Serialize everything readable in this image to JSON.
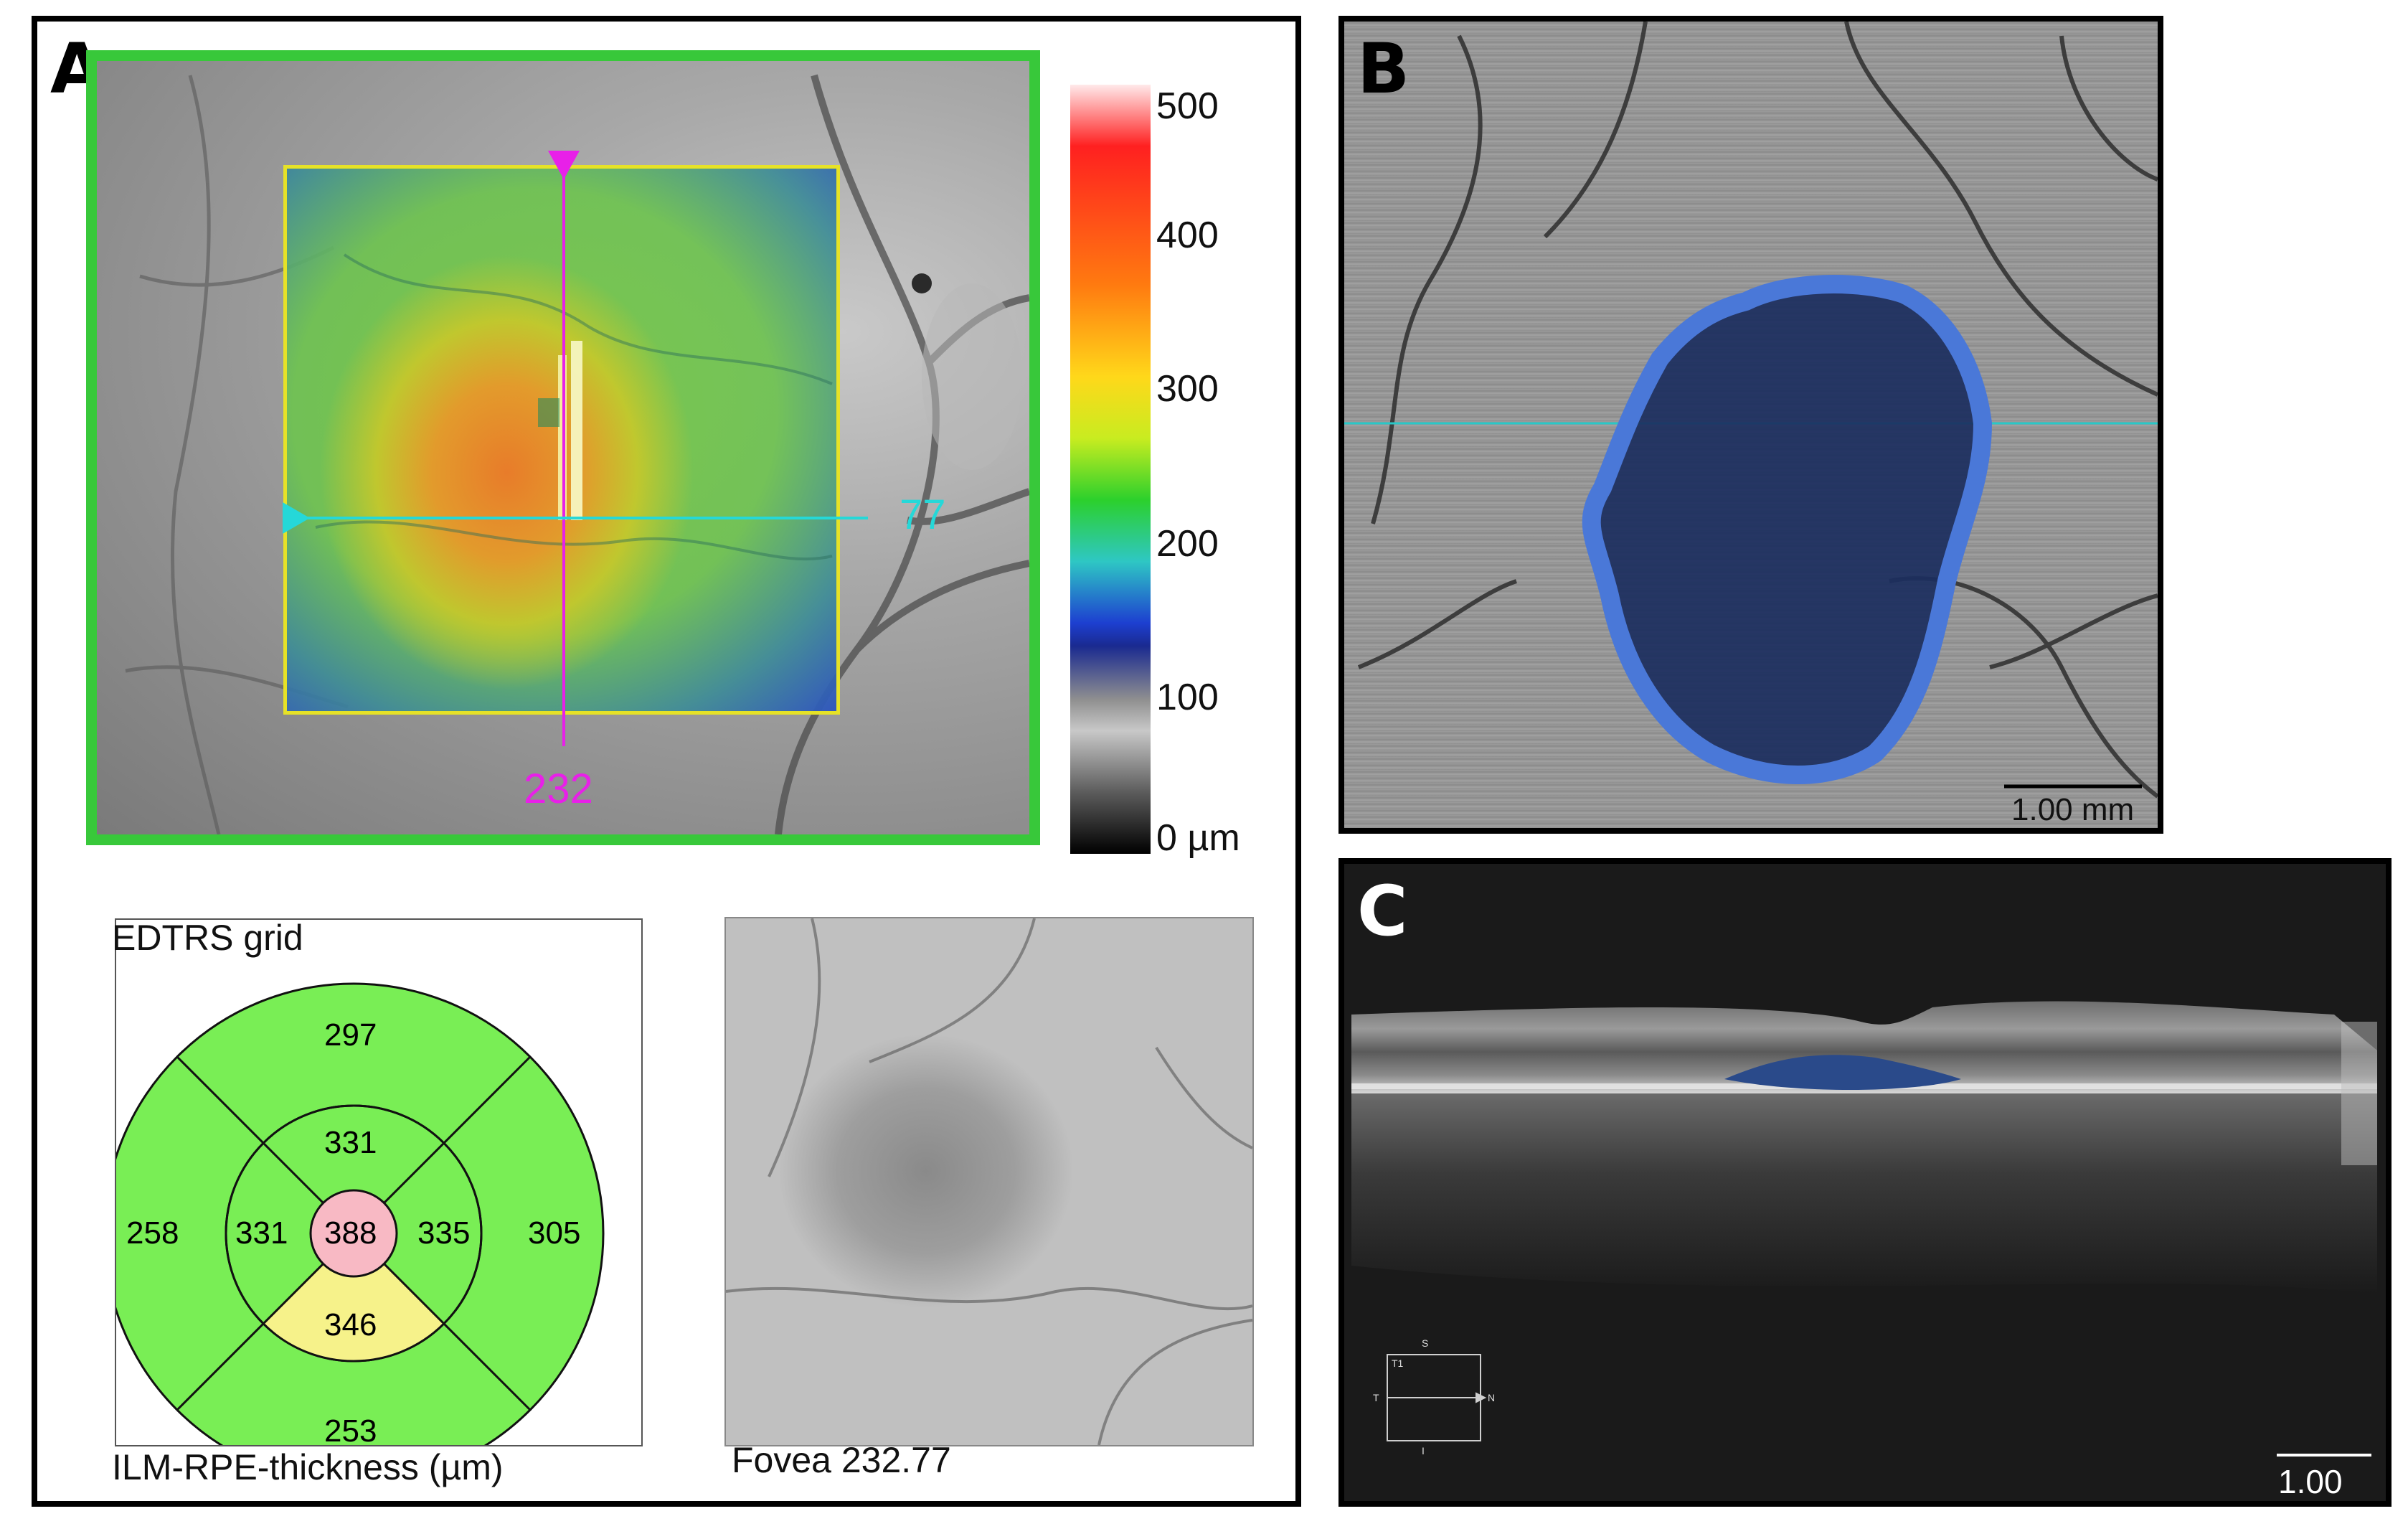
{
  "panels": {
    "a": {
      "label": "A",
      "crosshair": {
        "vertical_value": "232",
        "horizontal_value": "77"
      },
      "colorbar": {
        "ticks": [
          "500",
          "400",
          "300",
          "200",
          "100",
          "0 µm"
        ]
      },
      "edtrs": {
        "title": "EDTRS grid",
        "caption": "ILM-RPE-thickness (µm)",
        "outer_superior": "297",
        "outer_temporal": "258",
        "outer_nasal": "305",
        "outer_inferior": "253",
        "inner_superior": "331",
        "inner_temporal": "331",
        "inner_nasal": "335",
        "inner_inferior": "346",
        "center": "388"
      },
      "fovea_caption": "Fovea 232.77"
    },
    "b": {
      "label": "B",
      "scale_bar": "1.00 mm"
    },
    "c": {
      "label": "C",
      "scale_bar": "1.00 mm",
      "orientation": {
        "top": "S",
        "bottom": "I",
        "left": "T",
        "right": "N",
        "corner": "T1"
      }
    }
  },
  "colors": {
    "frame_green": "#38c83a",
    "overlay_border": "#e6e227",
    "vertical_line": "#e820e8",
    "horizontal_line": "#25d8d8",
    "lesion_outline": "#4a78d8",
    "lesion_fill": "#1b2e5e",
    "edtrs_green": "#79ee55",
    "edtrs_center": "#f8b9c4",
    "edtrs_yellow": "#f6f28a"
  }
}
